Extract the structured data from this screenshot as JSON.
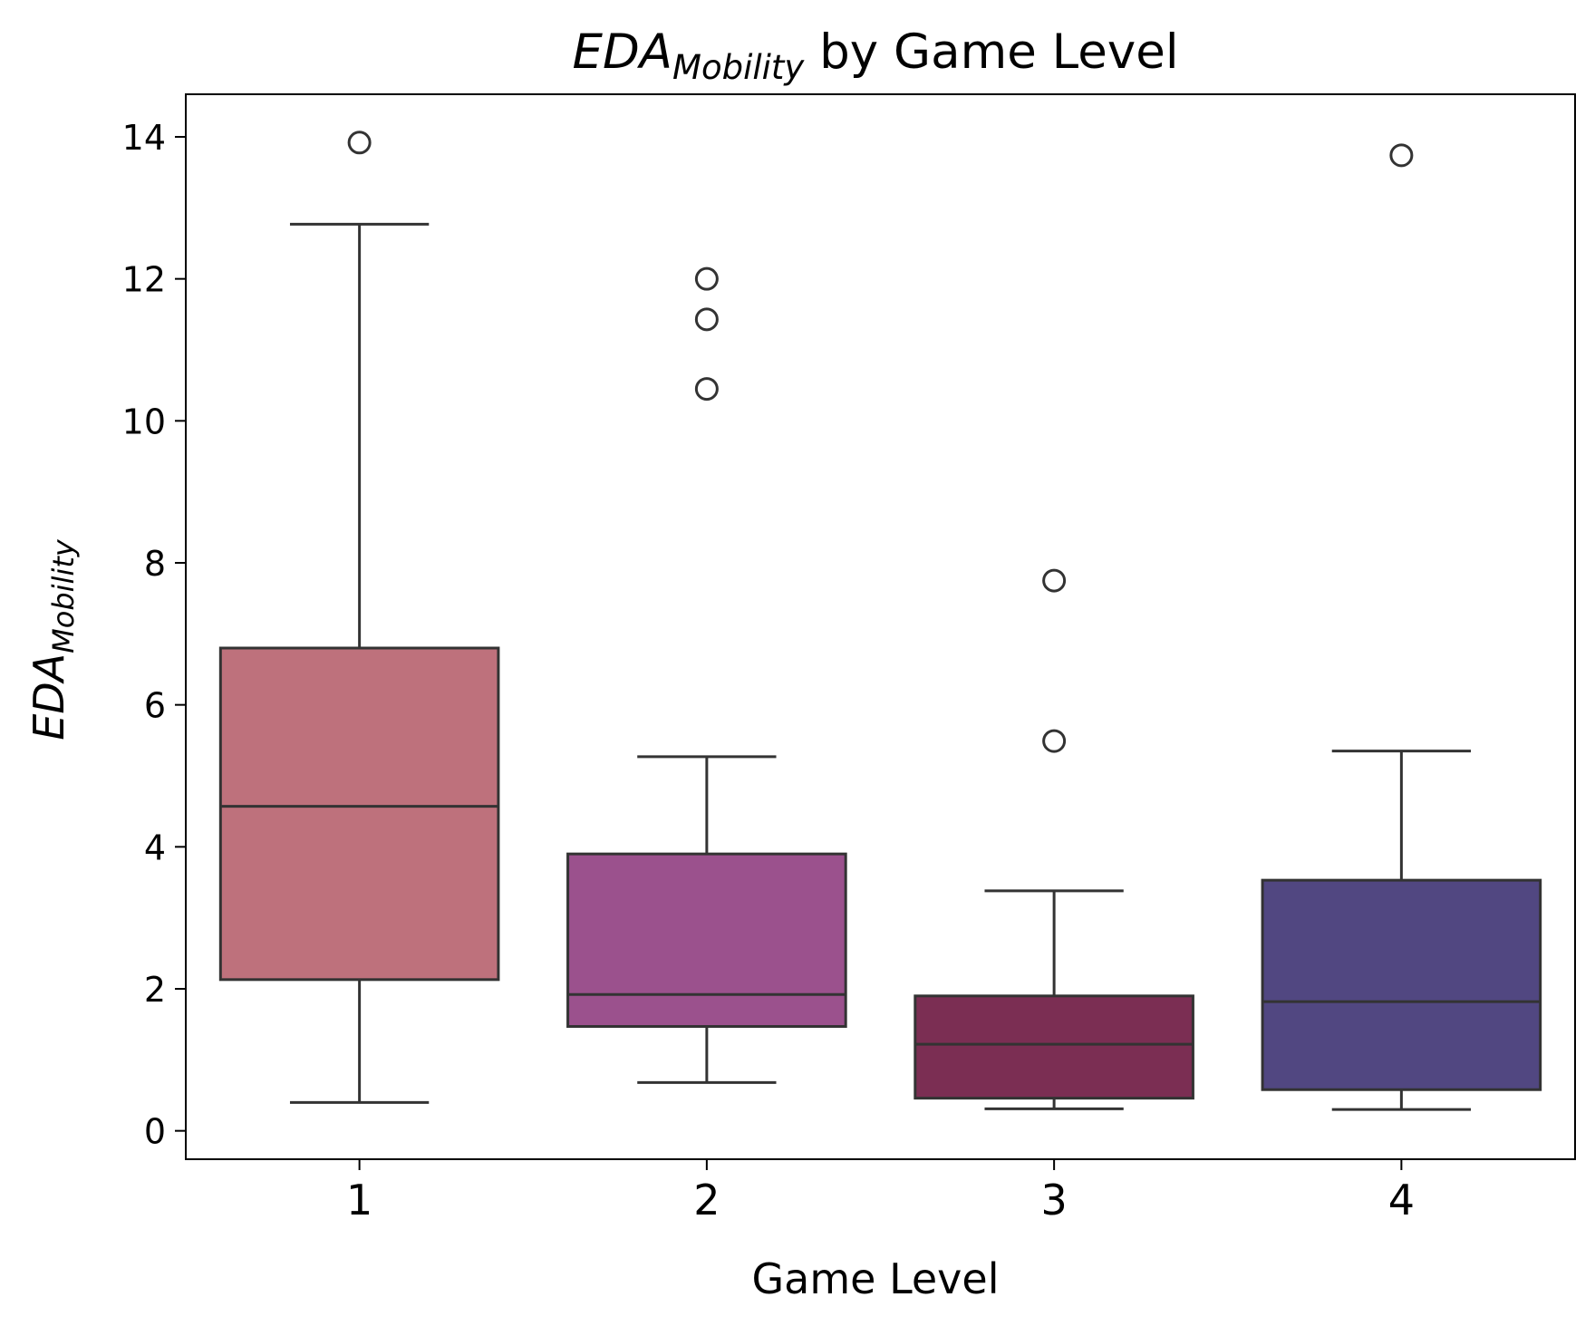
{
  "chart_data": {
    "type": "box",
    "title": {
      "main": "EDA",
      "subscript": "Mobility",
      "rest": " by Game Level"
    },
    "xlabel": "Game Level",
    "ylabel": {
      "main": "EDA",
      "subscript": "Mobility"
    },
    "categories": [
      "1",
      "2",
      "3",
      "4"
    ],
    "ylim": [
      -0.4,
      14.6
    ],
    "yticks": [
      0,
      2,
      4,
      6,
      8,
      10,
      12,
      14
    ],
    "boxes": [
      {
        "category": "1",
        "whisker_low": 0.4,
        "q1": 2.13,
        "median": 4.57,
        "q3": 6.8,
        "whisker_high": 12.77,
        "outliers": [
          13.92
        ],
        "color": "#be717c"
      },
      {
        "category": "2",
        "whisker_low": 0.68,
        "q1": 1.47,
        "median": 1.92,
        "q3": 3.9,
        "whisker_high": 5.27,
        "outliers": [
          12.0,
          11.43,
          10.45
        ],
        "color": "#9b518d"
      },
      {
        "category": "3",
        "whisker_low": 0.31,
        "q1": 0.46,
        "median": 1.22,
        "q3": 1.9,
        "whisker_high": 3.38,
        "outliers": [
          7.75,
          5.49
        ],
        "color": "#7b2e53"
      },
      {
        "category": "4",
        "whisker_low": 0.3,
        "q1": 0.58,
        "median": 1.82,
        "q3": 3.53,
        "whisker_high": 5.35,
        "outliers": [
          13.74
        ],
        "color": "#514781"
      }
    ],
    "line_color": "#333333",
    "grid": false,
    "legend": "none"
  }
}
